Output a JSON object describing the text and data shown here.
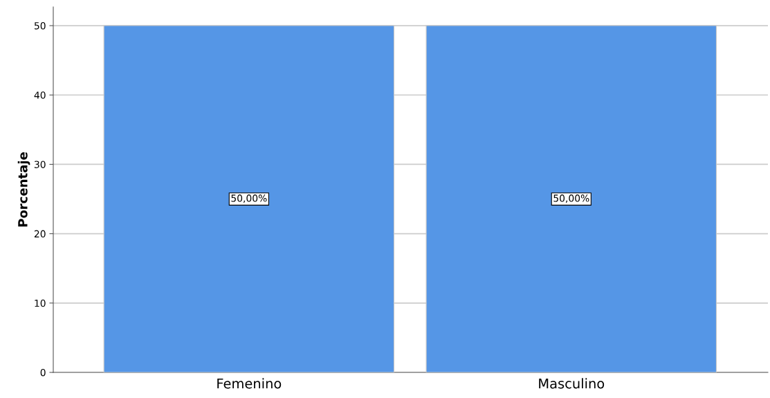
{
  "chart_data": {
    "type": "bar",
    "ylabel": "Porcentaje",
    "categories": [
      "Femenino",
      "Masculino"
    ],
    "values": [
      50,
      50
    ],
    "color": "#5596e6",
    "value_labels": [
      "50,00%",
      "50,00%"
    ],
    "ylim": [
      0,
      52.7
    ],
    "yticks": [
      0,
      10,
      20,
      30,
      40,
      50
    ],
    "grid": "y"
  }
}
